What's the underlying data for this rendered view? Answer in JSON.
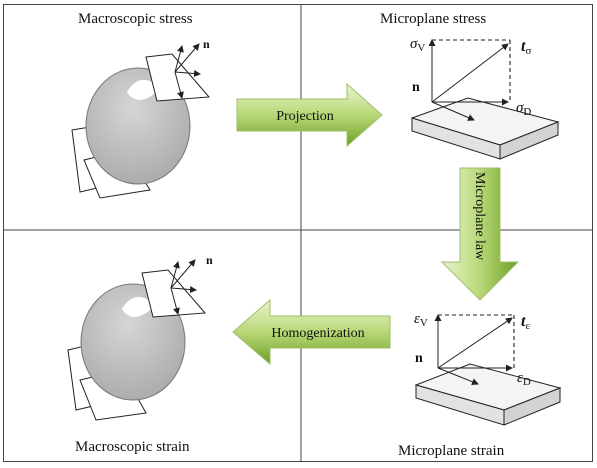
{
  "panels": {
    "macro_stress": {
      "title": "Macroscopic stress",
      "normal_label": "n"
    },
    "micro_stress": {
      "title": "Microplane stress",
      "normal_label": "n",
      "volumetric_label": "σ",
      "volumetric_sub": "V",
      "deviatoric_label": "σ",
      "deviatoric_sub": "D",
      "traction_label": "t",
      "traction_sub": "σ"
    },
    "macro_strain": {
      "title": "Macroscopic strain",
      "normal_label": "n"
    },
    "micro_strain": {
      "title": "Microplane strain",
      "normal_label": "n",
      "volumetric_label": "ε",
      "volumetric_sub": "V",
      "deviatoric_label": "ε",
      "deviatoric_sub": "D",
      "traction_label": "t",
      "traction_sub": "ε"
    }
  },
  "arrows": {
    "projection": "Projection",
    "microplane_law": "Microplane law",
    "homogenization": "Homogenization"
  },
  "colors": {
    "arrow_fill_light": "#d4e8a6",
    "arrow_fill_dark": "#74a32b",
    "sphere_fill": "#bdbdbd",
    "plate_fill": "#f2f2f2",
    "border": "#444444"
  }
}
